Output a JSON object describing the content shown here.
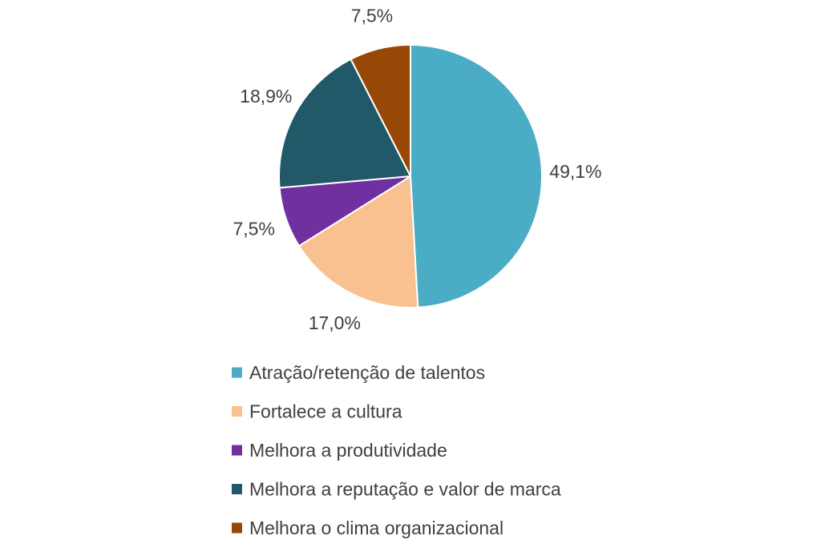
{
  "chart_data": {
    "type": "pie",
    "start_angle_deg": 0,
    "direction": "clockwise",
    "legend_position": "bottom",
    "slices": [
      {
        "label": "Atração/retenção de talentos",
        "value": 49.1,
        "value_label": "49,1%",
        "color": "#4BACC6"
      },
      {
        "label": "Fortalece a cultura",
        "value": 17.0,
        "value_label": "17,0%",
        "color": "#F9C090"
      },
      {
        "label": "Melhora a produtividade",
        "value": 7.5,
        "value_label": "7,5%",
        "color": "#7030A0"
      },
      {
        "label": "Melhora a reputação e valor de marca",
        "value": 18.9,
        "value_label": "18,9%",
        "color": "#215968"
      },
      {
        "label": "Melhora o clima organizacional",
        "value": 7.5,
        "value_label": "7,5%",
        "color": "#974706"
      }
    ]
  }
}
